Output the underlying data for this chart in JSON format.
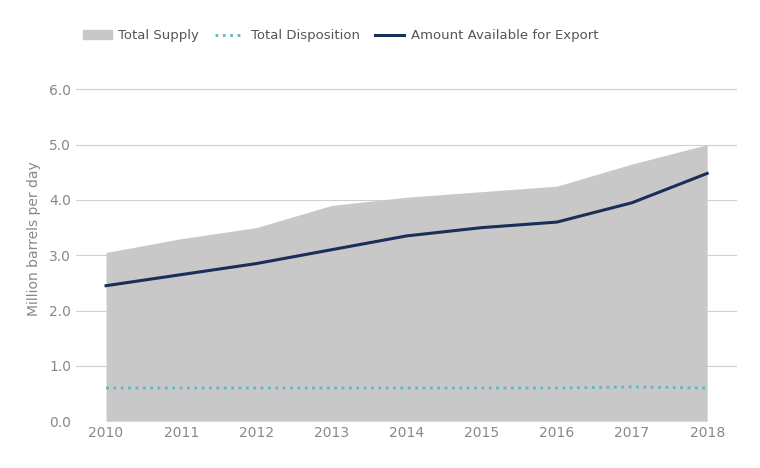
{
  "years": [
    2010,
    2011,
    2012,
    2013,
    2014,
    2015,
    2016,
    2017,
    2018
  ],
  "total_supply": [
    3.05,
    3.3,
    3.5,
    3.9,
    4.05,
    4.15,
    4.25,
    4.65,
    5.0
  ],
  "total_disposition": [
    0.6,
    0.6,
    0.6,
    0.6,
    0.6,
    0.6,
    0.6,
    0.62,
    0.6
  ],
  "amount_available_for_export": [
    2.45,
    2.65,
    2.85,
    3.1,
    3.35,
    3.5,
    3.6,
    3.95,
    4.48
  ],
  "supply_fill_color": "#c8c8c8",
  "disposition_color": "#5bb8c4",
  "disposition_linestyle": "dotted",
  "disposition_linewidth": 2.0,
  "export_color": "#1a2e5a",
  "export_linewidth": 2.2,
  "ylabel": "Million barrels per day",
  "ylim": [
    0.0,
    6.6
  ],
  "yticks": [
    0.0,
    1.0,
    2.0,
    3.0,
    4.0,
    5.0,
    6.0
  ],
  "ytick_labels": [
    "0.0",
    "1.0",
    "2.0",
    "3.0",
    "4.0",
    "5.0",
    "6.0"
  ],
  "xlim": [
    2009.6,
    2018.4
  ],
  "xticks": [
    2010,
    2011,
    2012,
    2013,
    2014,
    2015,
    2016,
    2017,
    2018
  ],
  "grid_color": "#d0d0d0",
  "grid_linewidth": 0.8,
  "background_color": "#ffffff",
  "legend_supply_label": "Total Supply",
  "legend_disposition_label": "Total Disposition",
  "legend_export_label": "Amount Available for Export",
  "tick_fontsize": 10,
  "ylabel_fontsize": 10,
  "tick_color": "#888888"
}
